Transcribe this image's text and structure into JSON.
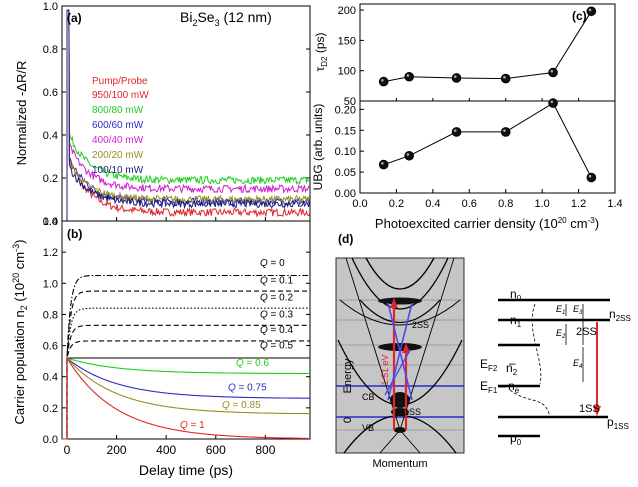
{
  "panel_a": {
    "tag": "(a)",
    "title_main": "Bi",
    "title_sub": "2",
    "title_rest": "Se",
    "title_sub2": "3",
    "title_end": " (12 nm)",
    "ylabel": "Normalized -ΔR/R",
    "legend_title": "Pump/Probe",
    "legend_title_color": "#e8272d"
  },
  "panel_b": {
    "tag": "(b)",
    "ylabel": "Carrier population n",
    "ylabel_sub": "2",
    "ylabel_unit": " (10",
    "ylabel_exp": "20",
    "ylabel_unit2": " cm",
    "ylabel_exp2": "-3",
    "ylabel_end": ")",
    "xlabel": "Delay time (ps)"
  },
  "panel_c": {
    "tag": "(c)",
    "ylabel_top": "τ",
    "ylabel_top_sub": "D2",
    "ylabel_top_unit": " (ps)",
    "ylabel_bottom": "UBG (arb. units)",
    "xlabel": "Photoexcited carrier density (10",
    "xlabel_exp": "20",
    "xlabel_unit": " cm",
    "xlabel_exp2": "-3",
    "xlabel_end": ")"
  },
  "panel_d": {
    "tag": "(d)",
    "energy_label": "Energy",
    "zero_label": "0",
    "momentum_label": "Momentum",
    "cb_label": "CB",
    "vb_label": "VB",
    "ss1_label": "1SS",
    "ss2_label": "2SS",
    "photon_label": "1.51 eV",
    "n0": "n",
    "n0_sub": "0",
    "n1": "n",
    "n1_sub": "1",
    "n2": "n",
    "n2_sub": "2",
    "ne": "n",
    "ne_sub": "e",
    "p0": "p",
    "p0_sub": "0",
    "n2ss": "n",
    "n2ss_sub": "2SS",
    "p1ss": "p",
    "p1ss_sub": "1SS",
    "ef2": "E",
    "ef2_sub": "F2",
    "ef1": "E",
    "ef1_sub": "F1",
    "e1": "E",
    "e1_sub": "1",
    "e2": "E",
    "e2_sub": "2",
    "e3": "E",
    "e3_sub": "3",
    "e4": "E",
    "e4_sub": "4",
    "right_2ss": "2SS",
    "right_1ss": "1SS"
  },
  "colors": {
    "red": "#e0262b",
    "green": "#1fcf1f",
    "blue": "#2c2cc8",
    "magenta": "#d21ed2",
    "olive": "#9b8e22",
    "navy": "#1c1c7a",
    "gray_panel": "#c6c6c6"
  },
  "chart_data": [
    {
      "id": "a",
      "type": "line",
      "xlabel": "",
      "ylabel": "Normalized -ΔR/R",
      "xlim": [
        -20,
        980
      ],
      "ylim": [
        0.0,
        1.0
      ],
      "yticks": [
        "0.0",
        "0.2",
        "0.4",
        "0.6",
        "0.8",
        "1.0"
      ],
      "legend_position": "center-left",
      "series": [
        {
          "name": "950/100 mW",
          "color": "#e0262b",
          "tail": 0.04,
          "peak": 0.29
        },
        {
          "name": "800/80 mW",
          "color": "#1fcf1f",
          "tail": 0.19,
          "peak": 0.4
        },
        {
          "name": "600/60 mW",
          "color": "#2c2cc8",
          "tail": 0.09,
          "peak": 0.29
        },
        {
          "name": "400/40 mW",
          "color": "#d21ed2",
          "tail": 0.15,
          "peak": 0.35
        },
        {
          "name": "200/20 mW",
          "color": "#9b8e22",
          "tail": 0.1,
          "peak": 0.27
        },
        {
          "name": "100/10 mW",
          "color": "#1c1c7a",
          "tail": 0.08,
          "peak": 0.25
        }
      ]
    },
    {
      "id": "b",
      "type": "line",
      "xlabel": "Delay time (ps)",
      "ylabel": "Carrier population n2 (10^20 cm^-3)",
      "xlim": [
        -20,
        980
      ],
      "ylim": [
        0.0,
        1.4
      ],
      "xticks": [
        "0",
        "200",
        "400",
        "600",
        "800"
      ],
      "yticks": [
        "0.0",
        "0.2",
        "0.4",
        "0.6",
        "0.8",
        "1.0",
        "1.2",
        "1.4"
      ],
      "series": [
        {
          "name": "Q = 0",
          "final": 1.05,
          "color": "#000000",
          "dash": "dashdot"
        },
        {
          "name": "Q = 0.1",
          "final": 0.95,
          "color": "#000000",
          "dash": "dash"
        },
        {
          "name": "Q = 0.2",
          "final": 0.84,
          "color": "#000000",
          "dash": "dot"
        },
        {
          "name": "Q = 0.3",
          "final": 0.73,
          "color": "#000000",
          "dash": "dash"
        },
        {
          "name": "Q = 0.4",
          "final": 0.63,
          "color": "#000000",
          "dash": "dash"
        },
        {
          "name": "Q = 0.5",
          "final": 0.52,
          "color": "#000000",
          "dash": "solid"
        },
        {
          "name": "Q = 0.6",
          "final": 0.42,
          "color": "#1fcf1f",
          "dash": "solid"
        },
        {
          "name": "Q = 0.75",
          "final": 0.26,
          "color": "#2c2cc8",
          "dash": "solid"
        },
        {
          "name": "Q = 0.85",
          "final": 0.16,
          "color": "#9b8e22",
          "dash": "solid"
        },
        {
          "name": "Q = 1",
          "final": 0.0,
          "color": "#e0262b",
          "dash": "solid"
        }
      ]
    },
    {
      "id": "c_top",
      "type": "line",
      "ylabel": "τD2 (ps)",
      "xlim": [
        0.0,
        1.4
      ],
      "ylim": [
        50,
        210
      ],
      "yticks": [
        "50",
        "100",
        "150",
        "200"
      ],
      "x": [
        0.13,
        0.27,
        0.53,
        0.8,
        1.06,
        1.27
      ],
      "y": [
        82,
        90,
        88,
        87,
        97,
        198
      ]
    },
    {
      "id": "c_bottom",
      "type": "line",
      "xlabel": "Photoexcited carrier density (10^20 cm^-3)",
      "ylabel": "UBG (arb. units)",
      "xlim": [
        0.0,
        1.4
      ],
      "ylim": [
        0.0,
        0.22
      ],
      "xticks": [
        "0.0",
        "0.2",
        "0.4",
        "0.6",
        "0.8",
        "1.0",
        "1.2",
        "1.4"
      ],
      "yticks": [
        "0.00",
        "0.05",
        "0.10",
        "0.15",
        "0.20"
      ],
      "x": [
        0.13,
        0.27,
        0.53,
        0.8,
        1.06,
        1.27
      ],
      "y": [
        0.068,
        0.089,
        0.146,
        0.146,
        0.215,
        0.037
      ]
    }
  ],
  "panel_b_labels": [
    {
      "text": "Q",
      "rest": " = 0"
    },
    {
      "text": "Q",
      "rest": " = 0.1"
    },
    {
      "text": "Q",
      "rest": " = 0.2"
    },
    {
      "text": "Q",
      "rest": " = 0.3"
    },
    {
      "text": "Q",
      "rest": " = 0.4"
    },
    {
      "text": "Q",
      "rest": " = 0.5"
    },
    {
      "text": "Q",
      "rest": " = 0.6"
    },
    {
      "text": "Q",
      "rest": " = 0.75"
    },
    {
      "text": "Q",
      "rest": " = 0.85"
    },
    {
      "text": "Q",
      "rest": " = 1"
    }
  ]
}
